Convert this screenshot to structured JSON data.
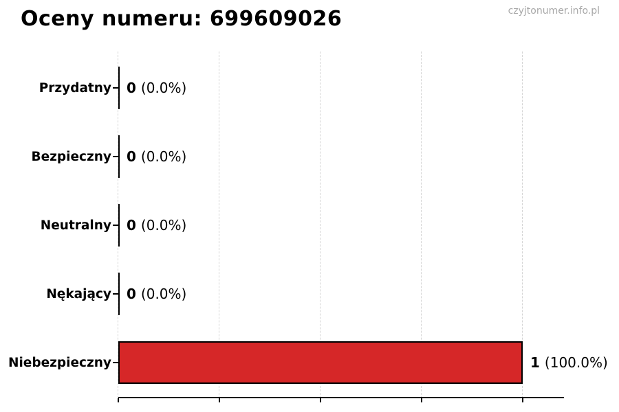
{
  "page": {
    "title": "Oceny numeru: 699609026",
    "watermark": "czyjtonumer.info.pl"
  },
  "chart_data": {
    "type": "bar",
    "orientation": "horizontal",
    "title": "Oceny numeru: 699609026",
    "categories": [
      "Przydatny",
      "Bezpieczny",
      "Neutralny",
      "Nękający",
      "Niebezpieczny"
    ],
    "values": [
      0,
      0,
      0,
      0,
      1
    ],
    "percent_values": [
      0.0,
      0.0,
      0.0,
      0.0,
      100.0
    ],
    "rows": [
      {
        "label": "Przydatny",
        "value": 0,
        "count_label": "0",
        "percent_label": "(0.0%)"
      },
      {
        "label": "Bezpieczny",
        "value": 0,
        "count_label": "0",
        "percent_label": "(0.0%)"
      },
      {
        "label": "Neutralny",
        "value": 0,
        "count_label": "0",
        "percent_label": "(0.0%)"
      },
      {
        "label": "Nękający",
        "value": 0,
        "count_label": "0",
        "percent_label": "(0.0%)"
      },
      {
        "label": "Niebezpieczny",
        "value": 1,
        "count_label": "1",
        "percent_label": "(100.0%)"
      }
    ],
    "xlabel": "",
    "ylabel": "",
    "xlim": [
      0,
      1.1
    ],
    "x_ticks": [
      0,
      0.25,
      0.5,
      0.75,
      1.0
    ],
    "x_tick_labels_visible": false,
    "grid": {
      "axis": "x",
      "style": "dashed",
      "color": "#d4d4d4"
    },
    "legend": "none",
    "bar_color": "#d62728",
    "bar_edge_color": "#000000"
  },
  "colors": {
    "background": "#ffffff",
    "bar_fill": "#d62728",
    "bar_edge": "#000000",
    "grid": "#d4d4d4",
    "axis": "#000000",
    "text": "#000000",
    "watermark": "#a8a8a8"
  }
}
